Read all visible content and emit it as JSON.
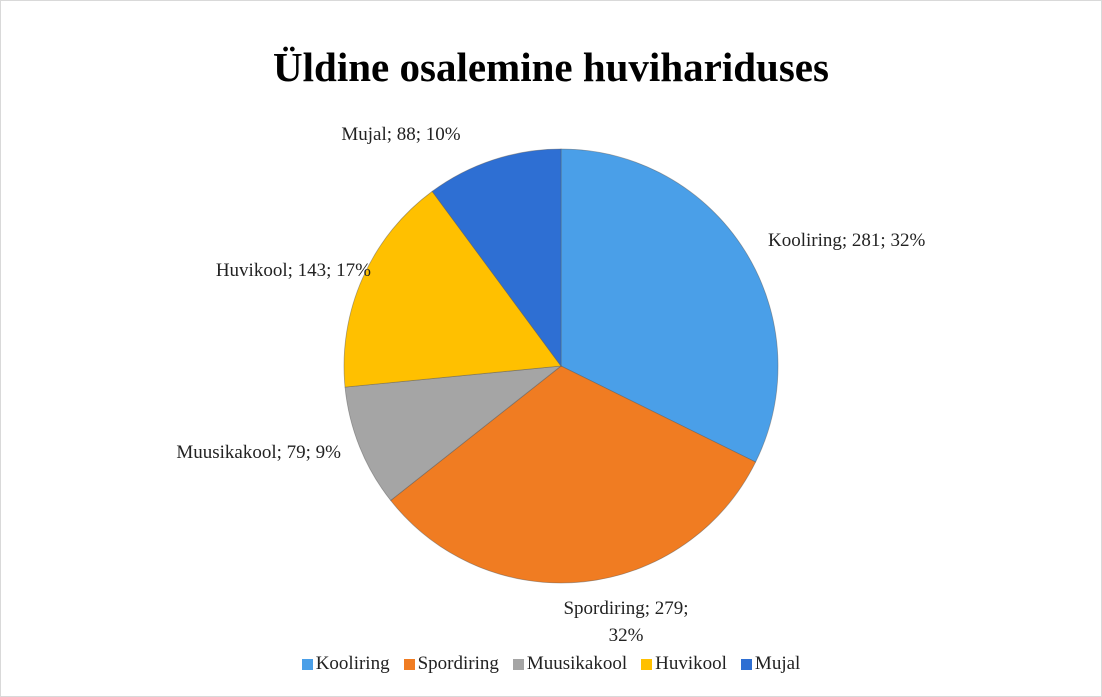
{
  "chart_data": {
    "type": "pie",
    "title": "Üldine osalemine huvihariduses",
    "categories": [
      "Kooliring",
      "Spordiring",
      "Muusikakool",
      "Huvikool",
      "Mujal"
    ],
    "values": [
      281,
      279,
      79,
      143,
      88
    ],
    "value_labels": [
      "Kooliring; 281; 32%",
      "Spordiring; 279; 32%",
      "Muusikakool; 79; 9%",
      "Huvikool; 143; 17%",
      "Mujal; 88; 10%"
    ],
    "colors": [
      "#4a9fe8",
      "#f07c22",
      "#a5a5a5",
      "#ffc000",
      "#2e6fd3"
    ],
    "legend": "bottom"
  }
}
